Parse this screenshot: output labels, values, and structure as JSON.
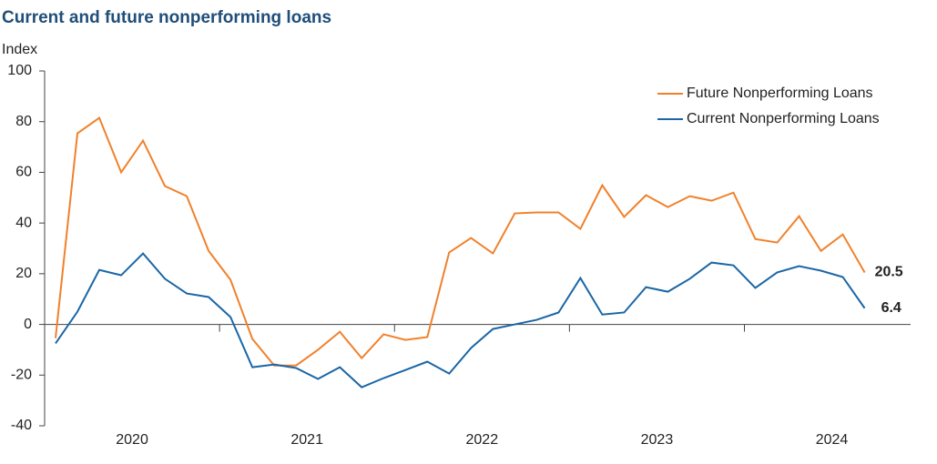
{
  "chart_data": {
    "type": "line",
    "title": "Current and future nonperforming loans",
    "y_label": "Index",
    "x": [
      2020.0625,
      2020.1875,
      2020.3125,
      2020.4375,
      2020.5625,
      2020.6875,
      2020.8125,
      2020.9375,
      2021.0625,
      2021.1875,
      2021.3125,
      2021.4375,
      2021.5625,
      2021.6875,
      2021.8125,
      2021.9375,
      2022.0625,
      2022.1875,
      2022.3125,
      2022.4375,
      2022.5625,
      2022.6875,
      2022.8125,
      2022.9375,
      2023.0625,
      2023.1875,
      2023.3125,
      2023.4375,
      2023.5625,
      2023.6875,
      2023.8125,
      2023.9375,
      2024.0625,
      2024.1875,
      2024.3125,
      2024.4375,
      2024.5625,
      2024.6875
    ],
    "series": [
      {
        "name": "Future Nonperforming Loans",
        "color": "#f0812b",
        "values": [
          -5.4,
          75.4,
          81.5,
          60,
          72.5,
          54.6,
          50.6,
          29,
          17.6,
          -5.7,
          -16.2,
          -16.2,
          -10,
          -2.9,
          -13.3,
          -3.9,
          -6.1,
          -5,
          28.4,
          34.1,
          28,
          43.8,
          44.2,
          44.2,
          37.7,
          54.9,
          42.4,
          51,
          46.3,
          50.6,
          48.8,
          52,
          33.7,
          32.3,
          42.7,
          29,
          35.5,
          20.5
        ]
      },
      {
        "name": "Current Nonperforming Loans",
        "color": "#1a66a6",
        "values": [
          -7.5,
          5,
          21.5,
          19.4,
          28,
          18,
          12.2,
          10.8,
          2.9,
          -16.9,
          -15.8,
          -17.2,
          -21.5,
          -16.9,
          -24.8,
          -21.2,
          -18,
          -14.7,
          -19.4,
          -9.3,
          -1.8,
          0,
          1.8,
          4.7,
          18.3,
          3.9,
          4.7,
          14.7,
          12.9,
          18,
          24.4,
          23.3,
          14.4,
          20.5,
          23,
          21.2,
          18.7,
          6.4
        ]
      }
    ],
    "xlim": [
      2020,
      2024.95
    ],
    "xticks": [
      {
        "value": 2020,
        "label": "2020"
      },
      {
        "value": 2021,
        "label": "2021"
      },
      {
        "value": 2022,
        "label": "2022"
      },
      {
        "value": 2023,
        "label": "2023"
      },
      {
        "value": 2024,
        "label": "2024"
      }
    ],
    "ylim": [
      -40,
      100
    ],
    "yticks": [
      -40,
      -20,
      0,
      20,
      40,
      60,
      80,
      100
    ],
    "legend": "upper right",
    "grid": false
  }
}
